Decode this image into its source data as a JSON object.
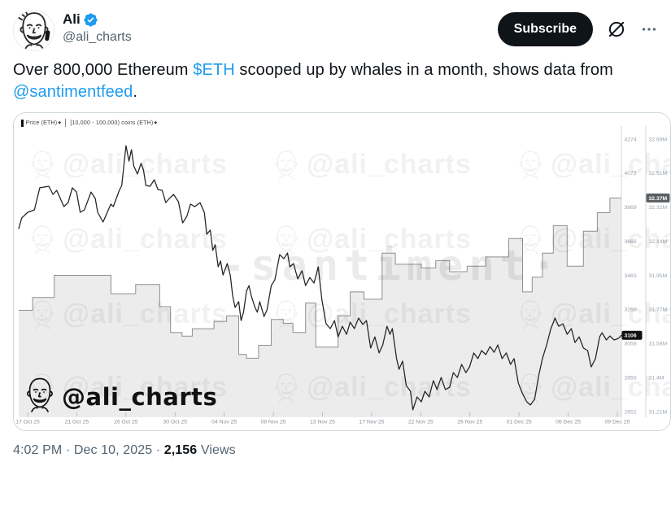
{
  "colors": {
    "accent_blue": "#1d9bf0",
    "text_primary": "#0f1419",
    "text_secondary": "#536471",
    "subscribe_bg": "#0f1419",
    "card_border": "#cfd9de",
    "price_line": "#222222",
    "area_fill": "#ececec",
    "area_stroke": "#8f8f8f",
    "axis_line": "#d6d6d6",
    "axis_label": "#9aa3ad",
    "price_badge_bg": "#111111",
    "supply_badge_bg": "#5b5f63"
  },
  "header": {
    "name": "Ali",
    "handle": "@ali_charts",
    "subscribe_label": "Subscribe"
  },
  "tweet": {
    "text_parts": [
      {
        "t": "Over 800,000 Ethereum ",
        "link": false
      },
      {
        "t": "$ETH",
        "link": true
      },
      {
        "t": " scooped up by whales in a month, shows data from ",
        "link": false
      },
      {
        "t": "@santimentfeed",
        "link": true
      },
      {
        "t": ".",
        "link": false
      }
    ]
  },
  "footer": {
    "time": "4:02 PM",
    "date": "Dec 10, 2025",
    "separator": "·",
    "views_count": "2,156",
    "views_label": "Views"
  },
  "chart_data": {
    "type": "line",
    "legend": [
      "Price (ETH)",
      "[10,000 - 100,000) coins (ETH)"
    ],
    "legend_sup": "◆",
    "signature": "@ali_charts",
    "watermark_tile": "@ali_charts",
    "watermark_center": "-santiment·",
    "price_axis": {
      "min": 2652,
      "max": 4274,
      "ticks": [
        "4274",
        "4072",
        "3869",
        "3666",
        "3463",
        "3260",
        "3058",
        "2855",
        "2652"
      ],
      "current": 3106,
      "current_label": "3106"
    },
    "supply_axis": {
      "min": 31.21,
      "max": 32.69,
      "ticks": [
        "32.69M",
        "32.51M",
        "32.32M",
        "32.14M",
        "31.95M",
        "31.77M",
        "31.58M",
        "31.4M",
        "31.21M"
      ],
      "current": 32.37,
      "current_label": "32.37M"
    },
    "x_axis": {
      "labels": [
        "17 Oct 25",
        "21 Oct 25",
        "26 Oct 25",
        "30 Oct 25",
        "04 Nov 25",
        "08 Nov 25",
        "13 Nov 25",
        "17 Nov 25",
        "22 Nov 25",
        "26 Nov 25",
        "01 Dec 25",
        "06 Dec 25",
        "09 Dec 25"
      ]
    },
    "series": [
      {
        "name": "Price (ETH)",
        "kind": "line",
        "axis": "price",
        "points": [
          [
            0,
            3741
          ],
          [
            0.005,
            3804
          ],
          [
            0.015,
            3838
          ],
          [
            0.026,
            3853
          ],
          [
            0.035,
            3984
          ],
          [
            0.05,
            3993
          ],
          [
            0.057,
            3945
          ],
          [
            0.063,
            3969
          ],
          [
            0.075,
            3872
          ],
          [
            0.082,
            3896
          ],
          [
            0.089,
            3984
          ],
          [
            0.096,
            3959
          ],
          [
            0.102,
            3838
          ],
          [
            0.109,
            3853
          ],
          [
            0.12,
            3959
          ],
          [
            0.127,
            3921
          ],
          [
            0.131,
            3838
          ],
          [
            0.14,
            3780
          ],
          [
            0.147,
            3838
          ],
          [
            0.153,
            3887
          ],
          [
            0.157,
            3872
          ],
          [
            0.167,
            3969
          ],
          [
            0.171,
            3998
          ],
          [
            0.178,
            4235
          ],
          [
            0.183,
            4143
          ],
          [
            0.187,
            4211
          ],
          [
            0.191,
            4114
          ],
          [
            0.197,
            4066
          ],
          [
            0.203,
            4129
          ],
          [
            0.207,
            4090
          ],
          [
            0.211,
            3998
          ],
          [
            0.218,
            3993
          ],
          [
            0.225,
            4032
          ],
          [
            0.231,
            3974
          ],
          [
            0.238,
            3969
          ],
          [
            0.244,
            3896
          ],
          [
            0.25,
            3921
          ],
          [
            0.257,
            3945
          ],
          [
            0.265,
            3901
          ],
          [
            0.272,
            3775
          ],
          [
            0.279,
            3814
          ],
          [
            0.285,
            3887
          ],
          [
            0.292,
            3872
          ],
          [
            0.301,
            3896
          ],
          [
            0.308,
            3838
          ],
          [
            0.312,
            3708
          ],
          [
            0.318,
            3732
          ],
          [
            0.322,
            3611
          ],
          [
            0.326,
            3645
          ],
          [
            0.331,
            3514
          ],
          [
            0.335,
            3548
          ],
          [
            0.339,
            3465
          ],
          [
            0.346,
            3533
          ],
          [
            0.351,
            3465
          ],
          [
            0.355,
            3340
          ],
          [
            0.359,
            3272
          ],
          [
            0.365,
            3306
          ],
          [
            0.369,
            3194
          ],
          [
            0.373,
            3243
          ],
          [
            0.378,
            3369
          ],
          [
            0.382,
            3402
          ],
          [
            0.386,
            3340
          ],
          [
            0.392,
            3272
          ],
          [
            0.396,
            3243
          ],
          [
            0.4,
            3306
          ],
          [
            0.407,
            3218
          ],
          [
            0.412,
            3257
          ],
          [
            0.419,
            3402
          ],
          [
            0.425,
            3436
          ],
          [
            0.433,
            3586
          ],
          [
            0.44,
            3562
          ],
          [
            0.446,
            3596
          ],
          [
            0.45,
            3514
          ],
          [
            0.456,
            3533
          ],
          [
            0.463,
            3441
          ],
          [
            0.47,
            3490
          ],
          [
            0.476,
            3402
          ],
          [
            0.483,
            3450
          ],
          [
            0.49,
            3417
          ],
          [
            0.497,
            3514
          ],
          [
            0.503,
            3320
          ],
          [
            0.51,
            3175
          ],
          [
            0.517,
            3146
          ],
          [
            0.524,
            3194
          ],
          [
            0.53,
            3097
          ],
          [
            0.537,
            3160
          ],
          [
            0.544,
            3112
          ],
          [
            0.55,
            3184
          ],
          [
            0.557,
            3146
          ],
          [
            0.564,
            3209
          ],
          [
            0.571,
            3170
          ],
          [
            0.577,
            3194
          ],
          [
            0.584,
            3030
          ],
          [
            0.591,
            3097
          ],
          [
            0.598,
            3001
          ],
          [
            0.604,
            3049
          ],
          [
            0.611,
            3160
          ],
          [
            0.616,
            3112
          ],
          [
            0.62,
            3146
          ],
          [
            0.627,
            2967
          ],
          [
            0.631,
            2904
          ],
          [
            0.637,
            2952
          ],
          [
            0.643,
            2807
          ],
          [
            0.65,
            2773
          ],
          [
            0.654,
            2662
          ],
          [
            0.661,
            2739
          ],
          [
            0.668,
            2710
          ],
          [
            0.674,
            2773
          ],
          [
            0.681,
            2739
          ],
          [
            0.688,
            2836
          ],
          [
            0.694,
            2783
          ],
          [
            0.701,
            2855
          ],
          [
            0.708,
            2783
          ],
          [
            0.715,
            2797
          ],
          [
            0.721,
            2884
          ],
          [
            0.728,
            2855
          ],
          [
            0.735,
            2933
          ],
          [
            0.742,
            2884
          ],
          [
            0.748,
            2918
          ],
          [
            0.755,
            3001
          ],
          [
            0.762,
            2967
          ],
          [
            0.768,
            3015
          ],
          [
            0.775,
            2991
          ],
          [
            0.782,
            3039
          ],
          [
            0.789,
            3005
          ],
          [
            0.795,
            3049
          ],
          [
            0.802,
            2967
          ],
          [
            0.809,
            3001
          ],
          [
            0.816,
            2933
          ],
          [
            0.822,
            2967
          ],
          [
            0.829,
            2821
          ],
          [
            0.836,
            2758
          ],
          [
            0.843,
            2710
          ],
          [
            0.849,
            2691
          ],
          [
            0.856,
            2725
          ],
          [
            0.863,
            2870
          ],
          [
            0.869,
            2967
          ],
          [
            0.876,
            3049
          ],
          [
            0.883,
            3146
          ],
          [
            0.89,
            3209
          ],
          [
            0.896,
            3160
          ],
          [
            0.903,
            3175
          ],
          [
            0.91,
            3112
          ],
          [
            0.917,
            3146
          ],
          [
            0.923,
            3063
          ],
          [
            0.93,
            3097
          ],
          [
            0.937,
            3030
          ],
          [
            0.944,
            3015
          ],
          [
            0.95,
            2918
          ],
          [
            0.957,
            2967
          ],
          [
            0.964,
            3097
          ],
          [
            0.968,
            3121
          ],
          [
            0.975,
            3078
          ],
          [
            0.981,
            3102
          ],
          [
            0.988,
            3078
          ],
          [
            0.995,
            3088
          ],
          [
            1,
            3106
          ]
        ]
      },
      {
        "name": "[10,000 - 100,000) coins (ETH)",
        "kind": "step-area",
        "axis": "supply",
        "points": [
          [
            0,
            31.76
          ],
          [
            0.023,
            31.83
          ],
          [
            0.059,
            31.95
          ],
          [
            0.153,
            31.85
          ],
          [
            0.194,
            31.9
          ],
          [
            0.234,
            31.78
          ],
          [
            0.252,
            31.64
          ],
          [
            0.271,
            31.62
          ],
          [
            0.288,
            31.66
          ],
          [
            0.324,
            31.7
          ],
          [
            0.345,
            31.73
          ],
          [
            0.365,
            31.52
          ],
          [
            0.378,
            31.5
          ],
          [
            0.398,
            31.57
          ],
          [
            0.419,
            31.71
          ],
          [
            0.439,
            31.69
          ],
          [
            0.455,
            31.64
          ],
          [
            0.476,
            31.8
          ],
          [
            0.493,
            31.56
          ],
          [
            0.53,
            31.73
          ],
          [
            0.55,
            31.86
          ],
          [
            0.573,
            31.82
          ],
          [
            0.603,
            32.07
          ],
          [
            0.625,
            32.01
          ],
          [
            0.668,
            31.99
          ],
          [
            0.692,
            32.03
          ],
          [
            0.715,
            31.97
          ],
          [
            0.744,
            32.0
          ],
          [
            0.775,
            32.05
          ],
          [
            0.813,
            32.15
          ],
          [
            0.836,
            31.86
          ],
          [
            0.852,
            31.94
          ],
          [
            0.869,
            32.07
          ],
          [
            0.887,
            32.22
          ],
          [
            0.91,
            32.0
          ],
          [
            0.937,
            32.19
          ],
          [
            0.96,
            32.29
          ],
          [
            0.981,
            32.37
          ]
        ]
      }
    ]
  }
}
